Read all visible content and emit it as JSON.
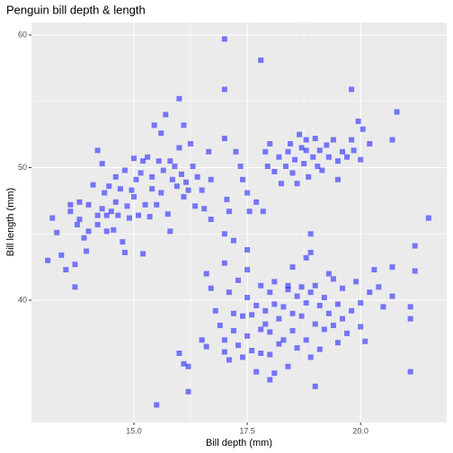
{
  "chart_data": {
    "type": "scatter",
    "title": "Penguin bill depth & length",
    "xlabel": "Bill depth (mm)",
    "ylabel": "Bill length (mm)",
    "color": "#0000ff",
    "grid": true,
    "xlim": [
      12.74,
      21.9
    ],
    "ylim": [
      30.78,
      60.95
    ],
    "xticks": [
      {
        "value": 15,
        "label": "15.0"
      },
      17.5,
      {
        "value": 20,
        "label": "20.0"
      }
    ],
    "yticks": [
      40,
      50,
      60
    ],
    "x": [
      13.1,
      13.2,
      13.3,
      13.4,
      13.5,
      13.6,
      13.6,
      13.7,
      13.7,
      13.75,
      13.8,
      13.8,
      13.9,
      13.95,
      14.0,
      14.0,
      14.1,
      14.2,
      14.2,
      14.2,
      14.3,
      14.3,
      14.35,
      14.4,
      14.4,
      14.45,
      14.5,
      14.55,
      14.6,
      14.6,
      14.65,
      14.7,
      14.75,
      14.8,
      14.8,
      14.85,
      14.9,
      14.95,
      15.0,
      15.0,
      15.05,
      15.1,
      15.15,
      15.2,
      15.2,
      15.25,
      15.3,
      15.35,
      15.4,
      15.4,
      15.45,
      15.5,
      15.55,
      15.6,
      15.6,
      15.65,
      15.7,
      15.75,
      15.8,
      15.8,
      15.85,
      15.9,
      15.95,
      16.0,
      16.0,
      16.05,
      16.1,
      16.15,
      16.2,
      16.25,
      16.3,
      16.35,
      16.4,
      16.5,
      16.55,
      16.65,
      16.7,
      16.7,
      17.0,
      17.05,
      17.1,
      17.25,
      17.35,
      17.4,
      17.5,
      17.55,
      17.7,
      17.85,
      17.9,
      17.95,
      18.0,
      18.1,
      18.2,
      18.25,
      18.35,
      18.4,
      18.45,
      18.5,
      18.55,
      18.6,
      18.65,
      18.7,
      18.75,
      18.8,
      18.8,
      18.85,
      18.95,
      19.0,
      19.05,
      19.1,
      19.15,
      19.25,
      19.3,
      19.4,
      19.5,
      19.5,
      19.6,
      19.7,
      19.8,
      19.8,
      19.85,
      19.95,
      20.0,
      20.05,
      20.2,
      20.7,
      20.8,
      21.5,
      17.0,
      17.8,
      17.0,
      16.1,
      16.6,
      16.7,
      16.8,
      16.9,
      17.0,
      17.0,
      17.0,
      17.1,
      17.1,
      17.2,
      17.2,
      17.3,
      17.3,
      17.4,
      17.4,
      17.5,
      17.5,
      17.5,
      17.6,
      17.6,
      17.7,
      17.7,
      17.8,
      17.8,
      17.8,
      17.9,
      17.9,
      18.0,
      18.0,
      18.0,
      18.1,
      18.1,
      18.1,
      18.2,
      18.2,
      18.3,
      18.3,
      18.4,
      18.4,
      18.4,
      18.5,
      18.5,
      18.5,
      18.6,
      18.6,
      18.7,
      18.7,
      18.8,
      18.8,
      18.8,
      18.9,
      18.9,
      19.0,
      19.0,
      19.1,
      19.1,
      19.2,
      19.2,
      19.3,
      19.3,
      19.4,
      19.4,
      19.5,
      19.5,
      19.6,
      19.6,
      19.7,
      19.8,
      19.9,
      20.0,
      20.0,
      20.1,
      20.2,
      20.3,
      20.4,
      20.5,
      20.7,
      20.7,
      21.1,
      21.1,
      21.2,
      21.2,
      21.1,
      19.0,
      18.0,
      16.2,
      15.5,
      16.0,
      16.1,
      16.2,
      16.6,
      16.5,
      17.0,
      17.2,
      17.5,
      18.9,
      18.9
    ],
    "y": [
      43.0,
      46.2,
      45.1,
      43.4,
      42.3,
      46.7,
      47.2,
      41.0,
      42.7,
      45.7,
      47.4,
      46.1,
      44.7,
      43.7,
      45.2,
      47.2,
      48.7,
      51.3,
      46.4,
      45.7,
      46.9,
      50.3,
      48.1,
      45.2,
      46.4,
      48.6,
      46.7,
      45.3,
      49.3,
      47.4,
      46.4,
      48.4,
      44.4,
      43.6,
      49.8,
      47.1,
      46.2,
      48.3,
      47.8,
      50.7,
      49.1,
      46.4,
      49.6,
      43.5,
      50.5,
      47.2,
      50.8,
      46.3,
      49.3,
      48.4,
      53.2,
      47.2,
      50.5,
      52.6,
      48.1,
      49.8,
      54.0,
      46.5,
      45.2,
      50.5,
      49.1,
      50.1,
      48.6,
      51.5,
      55.2,
      49.5,
      47.8,
      48.9,
      48.3,
      51.8,
      50.1,
      47.1,
      49.3,
      48.3,
      46.9,
      51.2,
      49.1,
      46.1,
      52.2,
      47.6,
      46.7,
      51.2,
      50.1,
      49.1,
      48.1,
      46.7,
      47.4,
      46.7,
      51.2,
      50.1,
      51.8,
      49.7,
      50.8,
      48.8,
      50.1,
      51.2,
      51.8,
      49.6,
      50.6,
      48.8,
      52.5,
      51.5,
      50.3,
      52.1,
      51.3,
      49.3,
      50.8,
      52.2,
      50.1,
      51.3,
      49.8,
      51.7,
      50.8,
      52.1,
      50.5,
      49.1,
      51.2,
      50.8,
      55.9,
      52.1,
      51.3,
      53.5,
      50.6,
      52.9,
      51.8,
      52.1,
      54.2,
      46.2,
      59.7,
      58.1,
      55.9,
      53.2,
      42.0,
      40.9,
      39.2,
      38.1,
      37.0,
      36.1,
      42.8,
      40.6,
      35.5,
      39.0,
      37.7,
      41.5,
      36.6,
      38.8,
      35.7,
      40.2,
      37.3,
      42.3,
      38.9,
      36.2,
      39.6,
      34.6,
      41.1,
      37.8,
      36.0,
      39.2,
      38.2,
      40.6,
      37.6,
      35.9,
      39.7,
      41.4,
      34.5,
      38.6,
      36.7,
      39.5,
      37.0,
      40.8,
      41.1,
      35.0,
      39.0,
      37.7,
      42.5,
      40.3,
      36.4,
      38.8,
      41.0,
      37.0,
      39.8,
      43.2,
      40.6,
      35.7,
      38.2,
      41.1,
      39.6,
      36.3,
      40.2,
      37.8,
      42.0,
      39.0,
      38.1,
      41.6,
      36.8,
      39.7,
      40.9,
      38.6,
      37.5,
      39.2,
      41.4,
      38.0,
      39.8,
      36.9,
      40.6,
      42.3,
      41.0,
      39.5,
      42.5,
      40.3,
      39.5,
      38.6,
      42.2,
      44.1,
      34.6,
      33.5,
      34.0,
      33.1,
      32.1,
      36.0,
      35.2,
      35.0,
      36.5,
      37.0,
      45.0,
      44.5,
      43.8,
      45.0,
      43.6
    ]
  }
}
